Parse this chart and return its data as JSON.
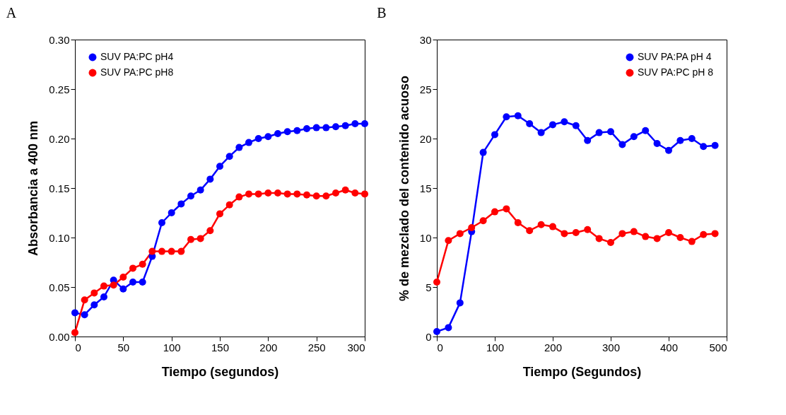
{
  "chart_data": [
    {
      "type": "line",
      "title": "A",
      "xlabel": "Tiempo (segundos)",
      "ylabel": "Absorbancia a 400 nm",
      "x": [
        0,
        10,
        20,
        30,
        40,
        50,
        60,
        70,
        80,
        90,
        100,
        110,
        120,
        130,
        140,
        150,
        160,
        170,
        180,
        190,
        200,
        210,
        220,
        230,
        240,
        250,
        260,
        270,
        280,
        290,
        300
      ],
      "series": [
        {
          "name": "SUV PA:PC pH4",
          "color": "#0000ff",
          "values": [
            0.024,
            0.022,
            0.032,
            0.04,
            0.057,
            0.048,
            0.055,
            0.055,
            0.081,
            0.115,
            0.125,
            0.134,
            0.142,
            0.148,
            0.159,
            0.172,
            0.182,
            0.191,
            0.196,
            0.2,
            0.202,
            0.205,
            0.207,
            0.208,
            0.21,
            0.211,
            0.211,
            0.212,
            0.213,
            0.215,
            0.215
          ]
        },
        {
          "name": "SUV PA:PC pH8",
          "color": "#ff0000",
          "values": [
            0.004,
            0.037,
            0.044,
            0.051,
            0.052,
            0.06,
            0.069,
            0.073,
            0.086,
            0.086,
            0.086,
            0.086,
            0.098,
            0.099,
            0.107,
            0.124,
            0.133,
            0.141,
            0.144,
            0.144,
            0.145,
            0.145,
            0.144,
            0.144,
            0.143,
            0.142,
            0.142,
            0.145,
            0.148,
            0.145,
            0.144
          ]
        }
      ],
      "xlim": [
        0,
        300
      ],
      "xticks": [
        0,
        50,
        100,
        150,
        200,
        250,
        300
      ],
      "ylim": [
        0,
        0.3
      ],
      "yticks": [
        {
          "value": 0,
          "label": "0.00"
        },
        0.05,
        {
          "value": 0.1,
          "label": "0.10"
        },
        0.15,
        {
          "value": 0.2,
          "label": "0.20"
        },
        0.25,
        {
          "value": 0.3,
          "label": "0.30"
        }
      ],
      "marker": "circle",
      "line_style": "solid",
      "legend": "top left",
      "grid": false
    },
    {
      "type": "line",
      "title": "B",
      "xlabel": "Tiempo (Segundos)",
      "ylabel": "% de mezclado del contenido acuoso",
      "x": [
        0,
        20,
        40,
        60,
        80,
        100,
        120,
        140,
        160,
        180,
        200,
        220,
        240,
        260,
        280,
        300,
        320,
        340,
        360,
        380,
        400,
        420,
        440,
        460,
        480
      ],
      "series": [
        {
          "name": "SUV PA:PA pH 4",
          "color": "#0000ff",
          "values": [
            0.5,
            0.9,
            3.4,
            10.6,
            18.6,
            20.4,
            22.2,
            22.3,
            21.5,
            20.6,
            21.4,
            21.7,
            21.3,
            19.8,
            20.6,
            20.7,
            19.4,
            20.2,
            20.8,
            19.5,
            18.8,
            19.8,
            20.0,
            19.2,
            19.3
          ]
        },
        {
          "name": "SUV PA:PC pH 8",
          "color": "#ff0000",
          "values": [
            5.5,
            9.7,
            10.4,
            11.0,
            11.7,
            12.6,
            12.9,
            11.5,
            10.7,
            11.3,
            11.1,
            10.4,
            10.5,
            10.8,
            9.9,
            9.5,
            10.4,
            10.6,
            10.1,
            9.9,
            10.5,
            10.0,
            9.6,
            10.3,
            10.4
          ]
        }
      ],
      "xlim": [
        0,
        500
      ],
      "xticks": [
        0,
        100,
        200,
        300,
        400,
        500
      ],
      "ylim": [
        0,
        30
      ],
      "yticks": [
        0,
        5,
        10,
        15,
        20,
        25,
        30
      ],
      "marker": "circle",
      "line_style": "solid",
      "legend": "top right",
      "grid": false
    }
  ]
}
